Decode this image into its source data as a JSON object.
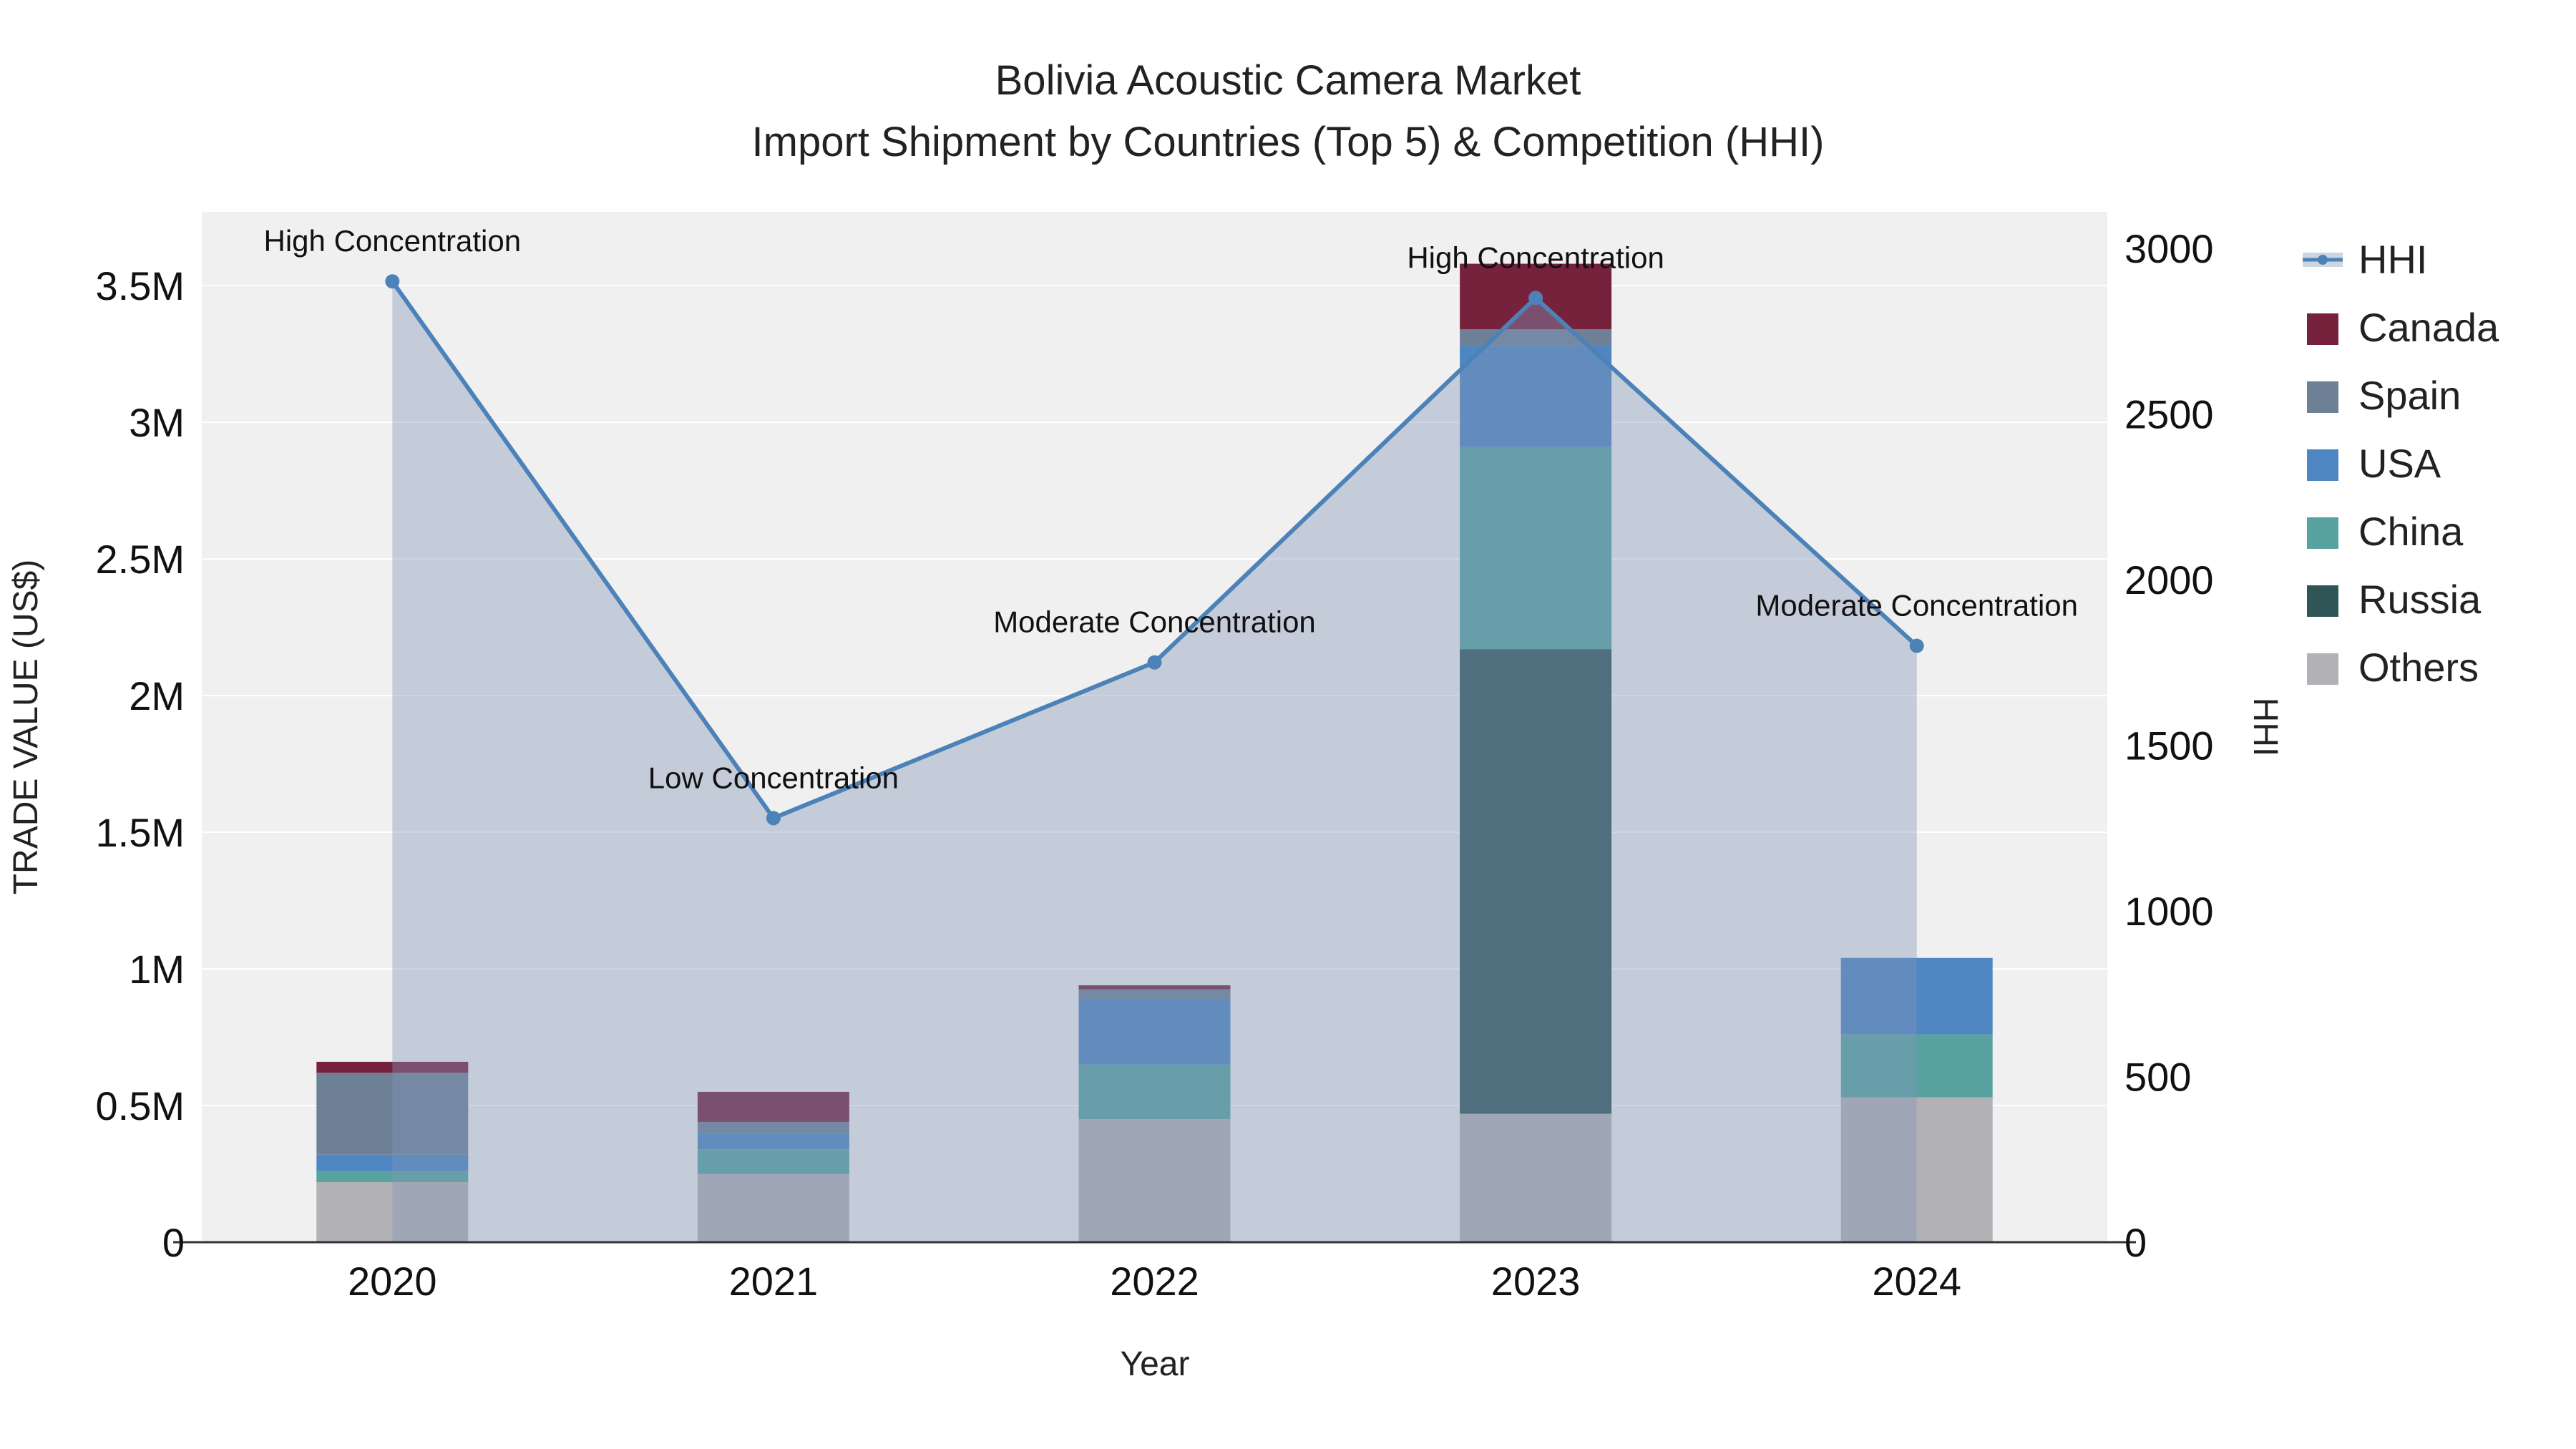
{
  "title": {
    "line1": "Bolivia Acoustic Camera Market",
    "line2": "Import Shipment by Countries (Top 5) & Competition (HHI)"
  },
  "axes": {
    "x_title": "Year",
    "y_left_title": "TRADE VALUE (US$)",
    "y_right_title": "HHI"
  },
  "legend": {
    "items": [
      {
        "label": "HHI",
        "type": "line",
        "color": "#4d82b8"
      },
      {
        "label": "Canada",
        "type": "square",
        "color": "#77223c"
      },
      {
        "label": "Spain",
        "type": "square",
        "color": "#6d8096"
      },
      {
        "label": "USA",
        "type": "square",
        "color": "#4d86c0"
      },
      {
        "label": "China",
        "type": "square",
        "color": "#58a2a0"
      },
      {
        "label": "Russia",
        "type": "square",
        "color": "#2f5557"
      },
      {
        "label": "Others",
        "type": "square",
        "color": "#b2b2b6"
      }
    ]
  },
  "chart_data": {
    "type": "combo-stacked-bar-and-line-area",
    "categories": [
      "2020",
      "2021",
      "2022",
      "2023",
      "2024"
    ],
    "bar_series_stack_bottom_to_top": [
      {
        "name": "Others",
        "color": "#b2b2b6",
        "values": [
          220000,
          250000,
          450000,
          470000,
          530000
        ]
      },
      {
        "name": "Russia",
        "color": "#2f5557",
        "values": [
          0,
          0,
          0,
          1700000,
          0
        ]
      },
      {
        "name": "China",
        "color": "#58a2a0",
        "values": [
          40000,
          90000,
          200000,
          740000,
          230000
        ]
      },
      {
        "name": "USA",
        "color": "#4d86c0",
        "values": [
          60000,
          60000,
          240000,
          370000,
          280000
        ]
      },
      {
        "name": "Spain",
        "color": "#6d8096",
        "values": [
          300000,
          40000,
          35000,
          60000,
          0
        ]
      },
      {
        "name": "Canada",
        "color": "#77223c",
        "values": [
          40000,
          110000,
          15000,
          240000,
          0
        ]
      }
    ],
    "line_series": {
      "name": "HHI",
      "axis": "right",
      "color": "#4d82b8",
      "area_fill": "rgba(130,150,185,0.40)",
      "values": [
        2900,
        1280,
        1750,
        2850,
        1800
      ]
    },
    "annotations": [
      {
        "year": "2020",
        "text": "High Concentration"
      },
      {
        "year": "2021",
        "text": "Low Concentration"
      },
      {
        "year": "2022",
        "text": "Moderate Concentration"
      },
      {
        "year": "2023",
        "text": "High Concentration"
      },
      {
        "year": "2024",
        "text": "Moderate Concentration"
      }
    ],
    "left_axis": {
      "label": "TRADE VALUE (US$)",
      "range_max": 3770000,
      "ticks": [
        {
          "value": 0,
          "label": "0"
        },
        {
          "value": 500000,
          "label": "0.5M"
        },
        {
          "value": 1000000,
          "label": "1M"
        },
        {
          "value": 1500000,
          "label": "1.5M"
        },
        {
          "value": 2000000,
          "label": "2M"
        },
        {
          "value": 2500000,
          "label": "2.5M"
        },
        {
          "value": 3000000,
          "label": "3M"
        },
        {
          "value": 3500000,
          "label": "3.5M"
        }
      ]
    },
    "right_axis": {
      "label": "HHI",
      "range_max": 3110,
      "ticks": [
        {
          "value": 0,
          "label": "0"
        },
        {
          "value": 500,
          "label": "500"
        },
        {
          "value": 1000,
          "label": "1000"
        },
        {
          "value": 1500,
          "label": "1500"
        },
        {
          "value": 2000,
          "label": "2000"
        },
        {
          "value": 2500,
          "label": "2500"
        },
        {
          "value": 3000,
          "label": "3000"
        }
      ]
    },
    "plot_background": "#f0f0f0",
    "gridline_color": "#ffffff"
  }
}
